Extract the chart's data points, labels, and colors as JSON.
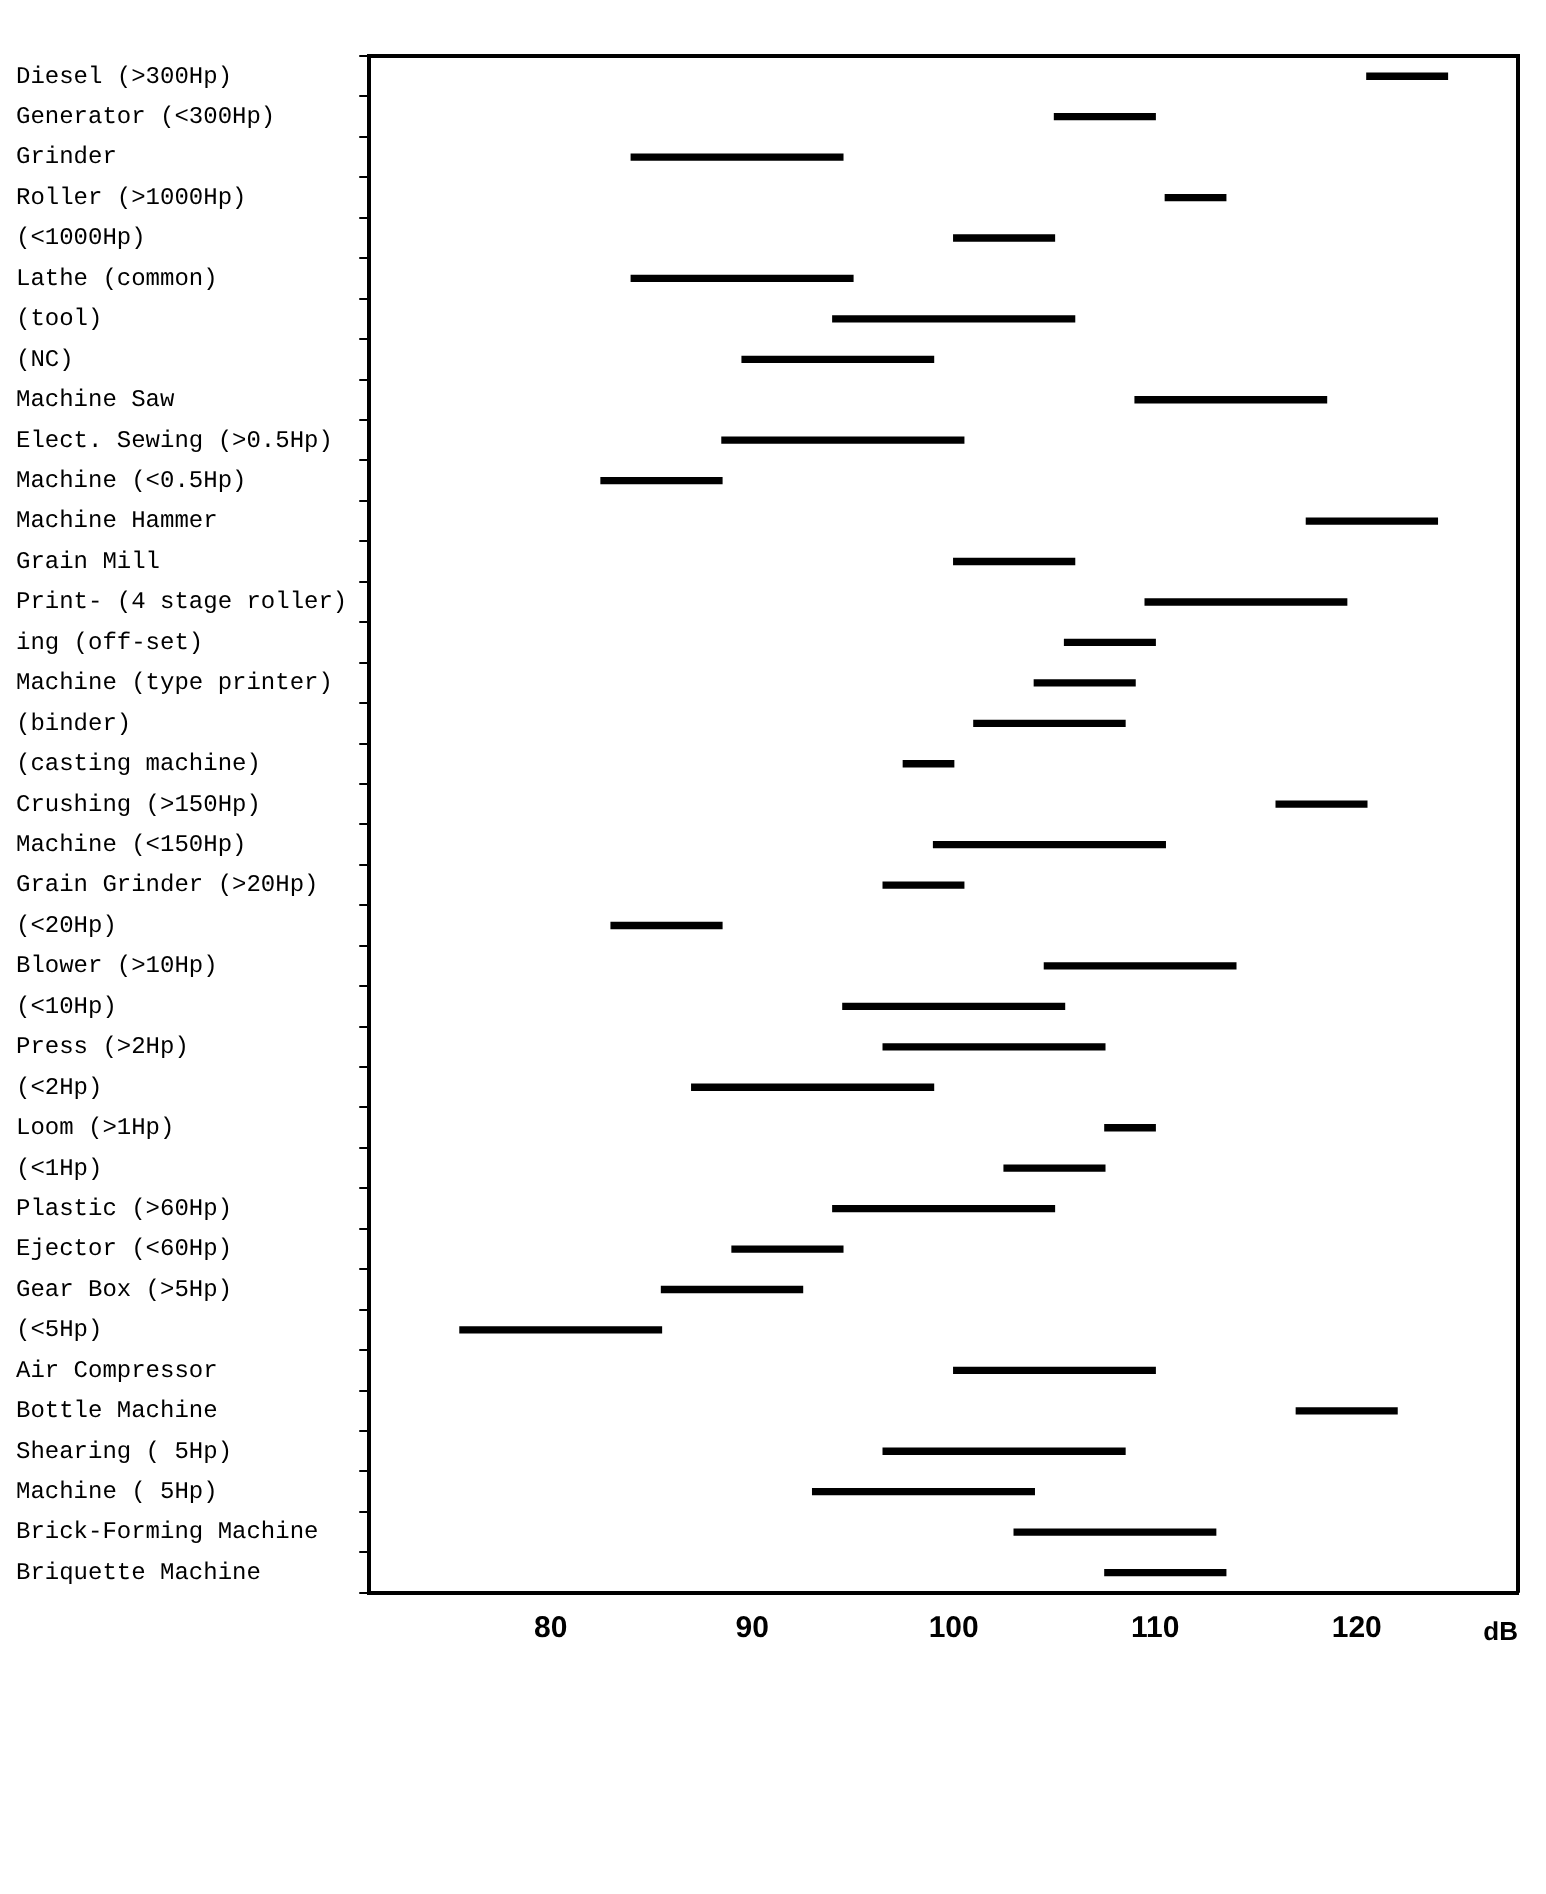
{
  "chart_data": {
    "type": "bar",
    "orientation": "horizontal",
    "xlabel": "dB",
    "categories": [
      "Diesel (>300Hp)",
      "Generator (<300Hp)",
      "Grinder",
      "Roller (>1000Hp)",
      "(<1000Hp)",
      "Lathe (common)",
      "(tool)",
      "(NC)",
      "Machine Saw",
      "Elect. Sewing (>0.5Hp)",
      "Machine (<0.5Hp)",
      "Machine Hammer",
      "Grain Mill",
      "Print- (4 stage roller)",
      "ing (off-set)",
      "Machine (type printer)",
      "(binder)",
      "(casting machine)",
      "Crushing (>150Hp)",
      "Machine (<150Hp)",
      "Grain Grinder (>20Hp)",
      "(<20Hp)",
      "Blower (>10Hp)",
      "(<10Hp)",
      "Press (>2Hp)",
      "(<2Hp)",
      "Loom (>1Hp)",
      "(<1Hp)",
      "Plastic (>60Hp)",
      "Ejector (<60Hp)",
      "Gear Box (>5Hp)",
      "(<5Hp)",
      "Air Compressor",
      "Bottle Machine",
      "Shearing ( 5Hp)",
      "Machine ( 5Hp)",
      "Brick-Forming Machine",
      "Briquette Machine"
    ],
    "base": [
      120.5,
      105,
      84,
      110.5,
      100,
      84,
      94,
      89.5,
      109,
      88.5,
      82.5,
      117.5,
      100,
      109.5,
      105.5,
      104,
      101,
      97.5,
      116,
      99,
      96.5,
      83,
      104.5,
      94.5,
      96.5,
      87,
      107.5,
      102.5,
      94,
      89,
      85.5,
      75.5,
      100,
      117,
      96.5,
      93,
      103,
      107.5
    ],
    "values": [
      4,
      5,
      10.5,
      3,
      5,
      11,
      12,
      9.5,
      9.5,
      12,
      6,
      6.5,
      6,
      10,
      4.5,
      5,
      7.5,
      2.5,
      4.5,
      11.5,
      4,
      5.5,
      9.5,
      11,
      11,
      12,
      2.5,
      5,
      11,
      5.5,
      7,
      10,
      10,
      5,
      12,
      11,
      10,
      6
    ],
    "color": "#000000",
    "xlim": [
      71,
      128
    ],
    "xticks": [
      80,
      90,
      100,
      110,
      120
    ],
    "grid": false
  }
}
